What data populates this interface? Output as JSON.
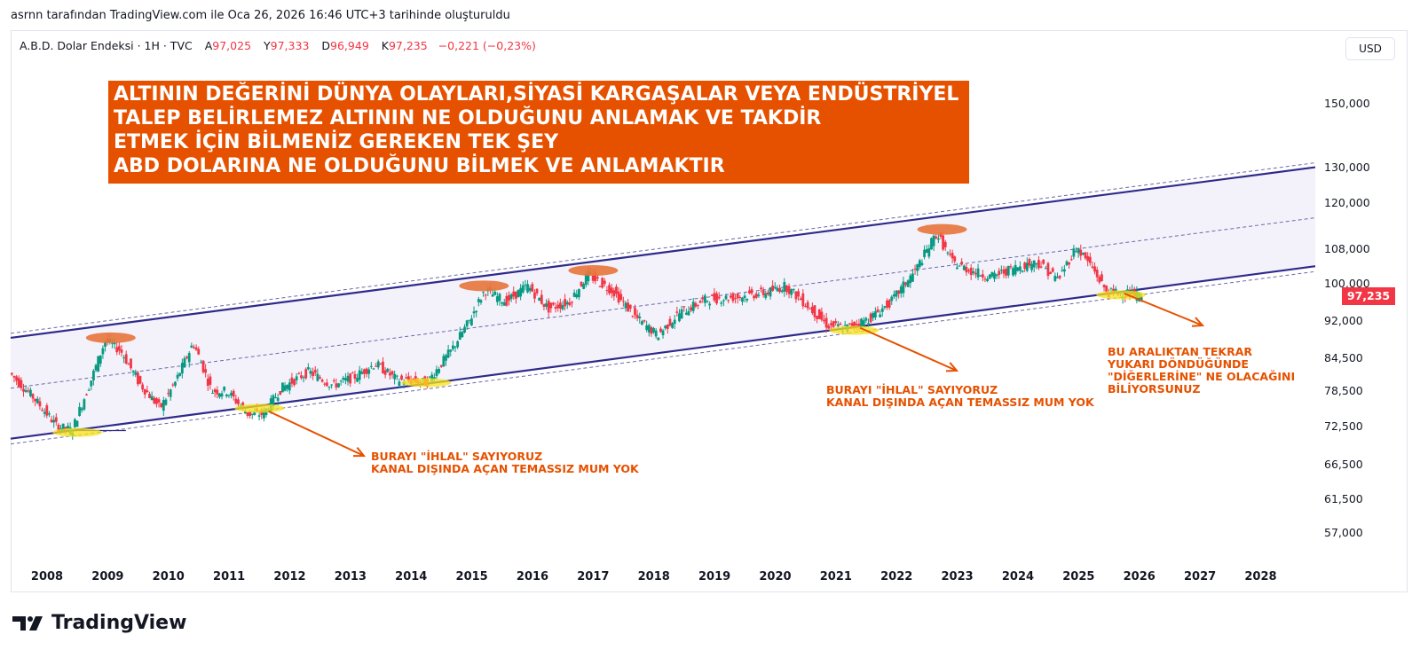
{
  "header": {
    "caption": "asrnn tarafından TradingView.com ile Oca 26, 2026 16:46 UTC+3 tarihinde oluşturuldu"
  },
  "legend": {
    "symbol": "A.B.D. Dolar Endeksi · 1H · TVC",
    "open_label": "A",
    "open": "97,025",
    "high_label": "Y",
    "high": "97,333",
    "low_label": "D",
    "low": "96,949",
    "close_label": "K",
    "close": "97,235",
    "change": "−0,221 (−0,23%)"
  },
  "toolbar": {
    "currency": "USD"
  },
  "banner": {
    "lines": [
      "ALTININ DEĞERİNİ DÜNYA OLAYLARI,SİYASİ KARGAŞALAR VEYA ENDÜSTRİYEL",
      "TALEP BELİRLEMEZ ALTININ NE OLDUĞUNU ANLAMAK VE TAKDİR",
      "ETMEK İÇİN BİLMENİZ GEREKEN TEK ŞEY",
      "ABD DOLARINA NE OLDUĞUNU BİLMEK VE ANLAMAKTIR"
    ]
  },
  "annotations": {
    "note1": [
      "BURAYI \"İHLAL\" SAYIYORUZ",
      "KANAL DIŞINDA AÇAN TEMASSIZ MUM YOK"
    ],
    "note2": [
      "BURAYI \"İHLAL\" SAYIYORUZ",
      "KANAL DIŞINDA AÇAN TEMASSIZ MUM YOK"
    ],
    "note3": [
      "BU ARALIKTAN TEKRAR",
      "YUKARI DÖNDÜĞÜNDE",
      "\"DİĞERLERİNE\" NE OLACAĞINI",
      "BİLİYORSUNUZ"
    ]
  },
  "price_tag": "97,235",
  "brand": {
    "name": "TradingView"
  },
  "colors": {
    "banner": "#e65100",
    "note": "#e65100",
    "up": "#089981",
    "down": "#f23645",
    "channel": "#2e2a8a",
    "channel_fill": "#f3f2fb",
    "highlight_top": "#e8743b",
    "highlight_bottom": "#f5e21a"
  },
  "chart_data": {
    "type": "candlestick",
    "scale": "log",
    "x_ticks": [
      "2008",
      "2009",
      "2010",
      "2011",
      "2012",
      "2013",
      "2014",
      "2015",
      "2016",
      "2017",
      "2018",
      "2019",
      "2020",
      "2021",
      "2022",
      "2023",
      "2024",
      "2025",
      "2026",
      "2027",
      "2028"
    ],
    "y_ticks": [
      {
        "value": 150,
        "label": "150,000"
      },
      {
        "value": 130,
        "label": "130,000"
      },
      {
        "value": 120,
        "label": "120,000"
      },
      {
        "value": 108,
        "label": "108,000"
      },
      {
        "value": 100,
        "label": "100,000"
      },
      {
        "value": 92,
        "label": "92,000"
      },
      {
        "value": 84.5,
        "label": "84,500"
      },
      {
        "value": 78.5,
        "label": "78,500"
      },
      {
        "value": 72.5,
        "label": "72,500"
      },
      {
        "value": 66.5,
        "label": "66,500"
      },
      {
        "value": 61.5,
        "label": "61,500"
      },
      {
        "value": 57,
        "label": "57,000"
      }
    ],
    "ylim": [
      54,
      175
    ],
    "xlim": [
      2007.4,
      2028.9
    ],
    "last_price": 97.235,
    "series": [
      {
        "x": 2007.4,
        "y": 82
      },
      {
        "x": 2007.8,
        "y": 77.5
      },
      {
        "x": 2008.2,
        "y": 72.5
      },
      {
        "x": 2008.45,
        "y": 71.8
      },
      {
        "x": 2008.75,
        "y": 80
      },
      {
        "x": 2009.0,
        "y": 88
      },
      {
        "x": 2009.25,
        "y": 86
      },
      {
        "x": 2009.55,
        "y": 80
      },
      {
        "x": 2009.9,
        "y": 75.5
      },
      {
        "x": 2010.15,
        "y": 80
      },
      {
        "x": 2010.45,
        "y": 87.5
      },
      {
        "x": 2010.75,
        "y": 78.5
      },
      {
        "x": 2011.0,
        "y": 78.5
      },
      {
        "x": 2011.35,
        "y": 74.5
      },
      {
        "x": 2011.6,
        "y": 74.5
      },
      {
        "x": 2011.9,
        "y": 79
      },
      {
        "x": 2012.35,
        "y": 82
      },
      {
        "x": 2012.75,
        "y": 79.5
      },
      {
        "x": 2013.1,
        "y": 81
      },
      {
        "x": 2013.45,
        "y": 83.5
      },
      {
        "x": 2013.8,
        "y": 80.5
      },
      {
        "x": 2014.3,
        "y": 80
      },
      {
        "x": 2014.7,
        "y": 86
      },
      {
        "x": 2015.0,
        "y": 92
      },
      {
        "x": 2015.25,
        "y": 98.5
      },
      {
        "x": 2015.6,
        "y": 96
      },
      {
        "x": 2015.95,
        "y": 99.5
      },
      {
        "x": 2016.3,
        "y": 94.5
      },
      {
        "x": 2016.65,
        "y": 96
      },
      {
        "x": 2016.95,
        "y": 102
      },
      {
        "x": 2017.35,
        "y": 98.5
      },
      {
        "x": 2017.75,
        "y": 92.5
      },
      {
        "x": 2018.1,
        "y": 89
      },
      {
        "x": 2018.45,
        "y": 93.5
      },
      {
        "x": 2018.9,
        "y": 96.5
      },
      {
        "x": 2019.4,
        "y": 97
      },
      {
        "x": 2019.9,
        "y": 98
      },
      {
        "x": 2020.2,
        "y": 99.5
      },
      {
        "x": 2020.5,
        "y": 96
      },
      {
        "x": 2020.9,
        "y": 91
      },
      {
        "x": 2021.2,
        "y": 90.5
      },
      {
        "x": 2021.6,
        "y": 92.5
      },
      {
        "x": 2021.95,
        "y": 96
      },
      {
        "x": 2022.35,
        "y": 103
      },
      {
        "x": 2022.7,
        "y": 112
      },
      {
        "x": 2022.95,
        "y": 105
      },
      {
        "x": 2023.25,
        "y": 103
      },
      {
        "x": 2023.6,
        "y": 101.5
      },
      {
        "x": 2023.95,
        "y": 103.5
      },
      {
        "x": 2024.35,
        "y": 105
      },
      {
        "x": 2024.7,
        "y": 101
      },
      {
        "x": 2025.0,
        "y": 108.5
      },
      {
        "x": 2025.25,
        "y": 104
      },
      {
        "x": 2025.5,
        "y": 98
      },
      {
        "x": 2025.8,
        "y": 98
      },
      {
        "x": 2026.07,
        "y": 97.2
      }
    ],
    "channel": {
      "lower": [
        {
          "x": 2007.4,
          "y": 70.5
        },
        {
          "x": 2028.9,
          "y": 104
        }
      ],
      "upper": [
        {
          "x": 2007.4,
          "y": 88.5
        },
        {
          "x": 2028.9,
          "y": 130
        }
      ],
      "median": [
        {
          "x": 2007.4,
          "y": 79
        },
        {
          "x": 2028.9,
          "y": 116
        }
      ]
    }
  }
}
